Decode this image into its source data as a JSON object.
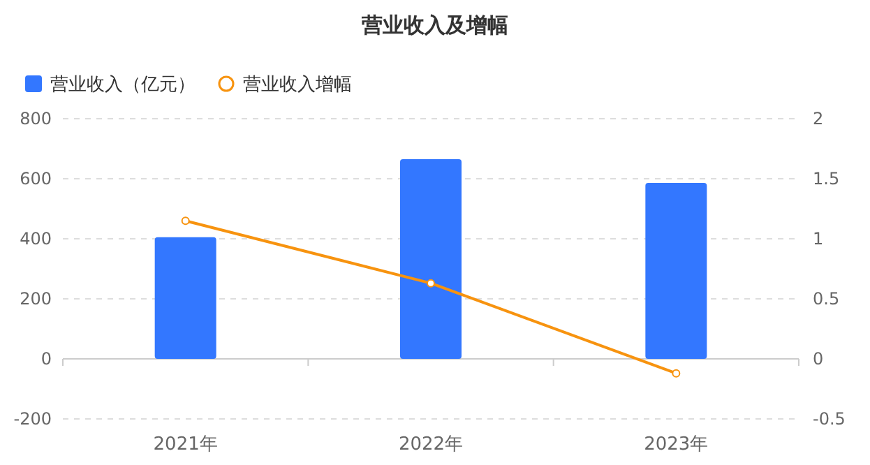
{
  "chart_data": {
    "type": "bar",
    "title": "营业收入及增幅",
    "categories": [
      "2021年",
      "2022年",
      "2023年"
    ],
    "series": [
      {
        "name": "营业收入（亿元）",
        "color": "#3377ff",
        "values": [
          405,
          665,
          586
        ]
      },
      {
        "name": "营业收入增幅",
        "type": "line",
        "axis": "y2",
        "color": "#f7930f",
        "marker": "circle",
        "values": [
          1.15,
          0.63,
          -0.12
        ]
      }
    ],
    "ylim": [
      -200,
      800
    ],
    "yticks": [
      -200,
      0,
      200,
      400,
      600,
      800
    ],
    "y2lim": [
      -0.5,
      2
    ],
    "y2ticks": [
      -0.5,
      0,
      0.5,
      1,
      1.5,
      2
    ],
    "grid": "y",
    "legend": "top left"
  }
}
